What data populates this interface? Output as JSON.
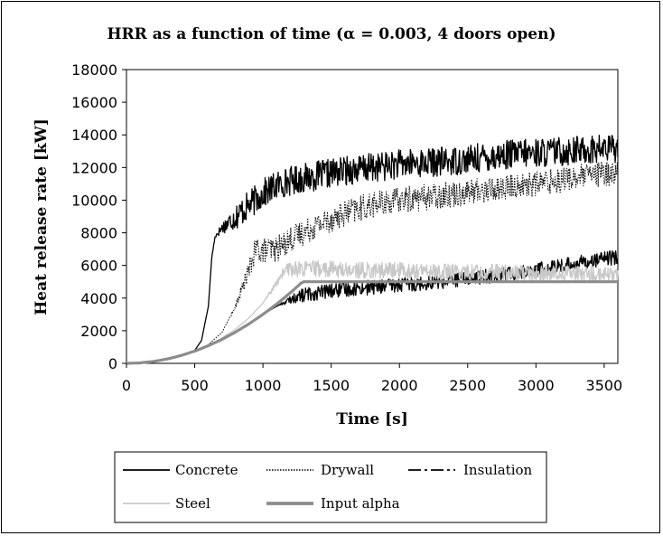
{
  "chart_data": {
    "type": "line",
    "title": "HRR as a function of time (α = 0.003, 4 doors open)",
    "xlabel": "Time [s]",
    "ylabel": "Heat release rate [kW]",
    "xlim": [
      0,
      3600
    ],
    "ylim": [
      0,
      18000
    ],
    "xticks": [
      0,
      500,
      1000,
      1500,
      2000,
      2500,
      3000,
      3500
    ],
    "yticks": [
      0,
      2000,
      4000,
      6000,
      8000,
      10000,
      12000,
      14000,
      16000,
      18000
    ],
    "grid": false,
    "legend_position": "bottom",
    "series": [
      {
        "name": "Concrete",
        "color": "#000000",
        "style": "solid",
        "x": [
          0,
          100,
          200,
          300,
          400,
          500,
          550,
          600,
          625,
          650,
          700,
          800,
          900,
          1000,
          1100,
          1200,
          1400,
          1600,
          1800,
          2000,
          2200,
          2400,
          2600,
          2800,
          3000,
          3200,
          3400,
          3600
        ],
        "y": [
          0,
          30,
          120,
          270,
          480,
          800,
          1400,
          3500,
          6500,
          7800,
          8300,
          9000,
          9700,
          10400,
          10900,
          11200,
          11500,
          11800,
          12000,
          12200,
          12300,
          12400,
          12600,
          12800,
          12900,
          13000,
          13100,
          13200
        ]
      },
      {
        "name": "Drywall",
        "color": "#000000",
        "style": "dotted",
        "x": [
          0,
          100,
          200,
          300,
          400,
          500,
          600,
          700,
          800,
          900,
          950,
          1000,
          1100,
          1200,
          1400,
          1600,
          1800,
          2000,
          2200,
          2400,
          2600,
          2800,
          3000,
          3200,
          3400,
          3600
        ],
        "y": [
          0,
          30,
          120,
          270,
          480,
          760,
          1150,
          1900,
          3500,
          5800,
          7000,
          6900,
          7000,
          7600,
          8500,
          9200,
          9700,
          10000,
          10200,
          10400,
          10600,
          10800,
          11000,
          11300,
          11500,
          11700
        ]
      },
      {
        "name": "Insulation",
        "color": "#000000",
        "style": "dashdot",
        "x": [
          0,
          100,
          200,
          300,
          400,
          500,
          600,
          700,
          800,
          900,
          1000,
          1100,
          1200,
          1300,
          1500,
          1700,
          2000,
          2300,
          2600,
          2900,
          3200,
          3400,
          3600
        ],
        "y": [
          0,
          30,
          120,
          270,
          480,
          750,
          1080,
          1470,
          1920,
          2430,
          3000,
          3500,
          3900,
          4200,
          4450,
          4600,
          4800,
          5000,
          5300,
          5600,
          6000,
          6300,
          6500
        ]
      },
      {
        "name": "Steel",
        "color": "#c8c8c8",
        "style": "solid",
        "x": [
          0,
          100,
          200,
          300,
          400,
          500,
          600,
          700,
          800,
          900,
          1000,
          1100,
          1150,
          1200,
          1400,
          1700,
          2000,
          2300,
          2600,
          2900,
          3200,
          3600
        ],
        "y": [
          0,
          30,
          120,
          270,
          480,
          750,
          1100,
          1550,
          2100,
          2800,
          3700,
          4900,
          5600,
          5800,
          5800,
          5700,
          5700,
          5600,
          5600,
          5500,
          5500,
          5400
        ]
      },
      {
        "name": "Input alpha",
        "color": "#8c8c8c",
        "style": "thick",
        "x": [
          0,
          100,
          200,
          300,
          400,
          500,
          600,
          700,
          800,
          900,
          1000,
          1100,
          1200,
          1291,
          1500,
          2000,
          2500,
          3000,
          3600
        ],
        "y": [
          0,
          30,
          120,
          270,
          480,
          750,
          1080,
          1470,
          1920,
          2430,
          3000,
          3630,
          4320,
          5000,
          5000,
          5000,
          5000,
          5000,
          5000
        ]
      }
    ]
  }
}
